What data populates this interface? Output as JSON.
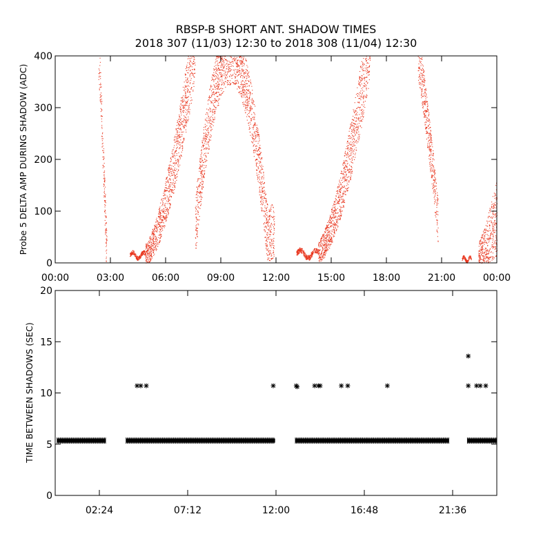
{
  "header": {
    "title_line1": "RBSP-B SHORT ANT. SHADOW TIMES",
    "title_line2": "2018 307 (11/03) 12:30 to 2018 308 (11/04) 12:30"
  },
  "colors": {
    "shadow_points": "#e8341c",
    "interval_points": "#000000",
    "axes": "#000000",
    "background": "#ffffff"
  },
  "chart_data": [
    {
      "type": "scatter",
      "ylabel": "Probe 5 DELTA AMP DURING SHADOW (ADC)",
      "xlabel": "",
      "xlim_hours": [
        0,
        24
      ],
      "ylim": [
        0,
        400
      ],
      "x_tick_labels": [
        "00:00",
        "03:00",
        "06:00",
        "09:00",
        "12:00",
        "15:00",
        "18:00",
        "21:00",
        "00:00"
      ],
      "x_tick_hours": [
        0,
        3,
        6,
        9,
        12,
        15,
        18,
        21,
        24
      ],
      "y_tick_labels": [
        "0",
        "100",
        "200",
        "300",
        "400"
      ],
      "y_tick_values": [
        0,
        100,
        200,
        300,
        400
      ],
      "segments": [
        {
          "t0": 2.35,
          "t1": 2.8,
          "shape": "fall",
          "ymin": 0,
          "ymax": 400
        },
        {
          "t0": 4.05,
          "t1": 4.9,
          "shape": "band",
          "ymin": 5,
          "ymax": 25
        },
        {
          "t0": 4.9,
          "t1": 7.6,
          "shape": "rise",
          "ymin": 10,
          "ymax": 400
        },
        {
          "t0": 7.6,
          "t1": 11.9,
          "shape": "peak",
          "ymin": 60,
          "ymax": 400
        },
        {
          "t0": 13.1,
          "t1": 14.3,
          "shape": "band",
          "ymin": 5,
          "ymax": 30
        },
        {
          "t0": 14.3,
          "t1": 17.1,
          "shape": "rise",
          "ymin": 15,
          "ymax": 400
        },
        {
          "t0": 19.7,
          "t1": 20.8,
          "shape": "fall",
          "ymin": 80,
          "ymax": 400
        },
        {
          "t0": 22.1,
          "t1": 22.6,
          "shape": "band",
          "ymin": 0,
          "ymax": 15
        },
        {
          "t0": 23.0,
          "t1": 24.0,
          "shape": "rise",
          "ymin": 10,
          "ymax": 60
        }
      ],
      "color": "#e8341c"
    },
    {
      "type": "scatter",
      "ylabel": "TIME BETWEEN SHADOWS (SEC)",
      "xlabel": "",
      "xlim_hours": [
        0,
        24
      ],
      "ylim": [
        0,
        20
      ],
      "x_tick_labels": [
        "02:24",
        "07:12",
        "12:00",
        "16:48",
        "21:36"
      ],
      "x_tick_hours": [
        2.4,
        7.2,
        12.0,
        16.8,
        21.6
      ],
      "y_tick_labels": [
        "0",
        "5",
        "10",
        "15",
        "20"
      ],
      "y_tick_values": [
        0,
        5,
        10,
        15,
        20
      ],
      "baseline_value": 5.35,
      "baseline_ranges_hours": [
        [
          0.1,
          2.75
        ],
        [
          3.85,
          11.95
        ],
        [
          13.05,
          21.4
        ],
        [
          22.4,
          24.0
        ]
      ],
      "outliers": [
        {
          "t": 4.45,
          "v": 10.7
        },
        {
          "t": 4.65,
          "v": 10.7
        },
        {
          "t": 4.95,
          "v": 10.7
        },
        {
          "t": 11.85,
          "v": 10.7
        },
        {
          "t": 13.1,
          "v": 10.7
        },
        {
          "t": 13.15,
          "v": 10.6
        },
        {
          "t": 14.1,
          "v": 10.7
        },
        {
          "t": 14.3,
          "v": 10.7
        },
        {
          "t": 14.4,
          "v": 10.7
        },
        {
          "t": 15.55,
          "v": 10.7
        },
        {
          "t": 15.9,
          "v": 10.7
        },
        {
          "t": 18.05,
          "v": 10.7
        },
        {
          "t": 22.45,
          "v": 13.6
        },
        {
          "t": 22.45,
          "v": 10.7
        },
        {
          "t": 22.9,
          "v": 10.7
        },
        {
          "t": 23.1,
          "v": 10.7
        },
        {
          "t": 23.4,
          "v": 10.7
        }
      ],
      "color": "#000000"
    }
  ]
}
